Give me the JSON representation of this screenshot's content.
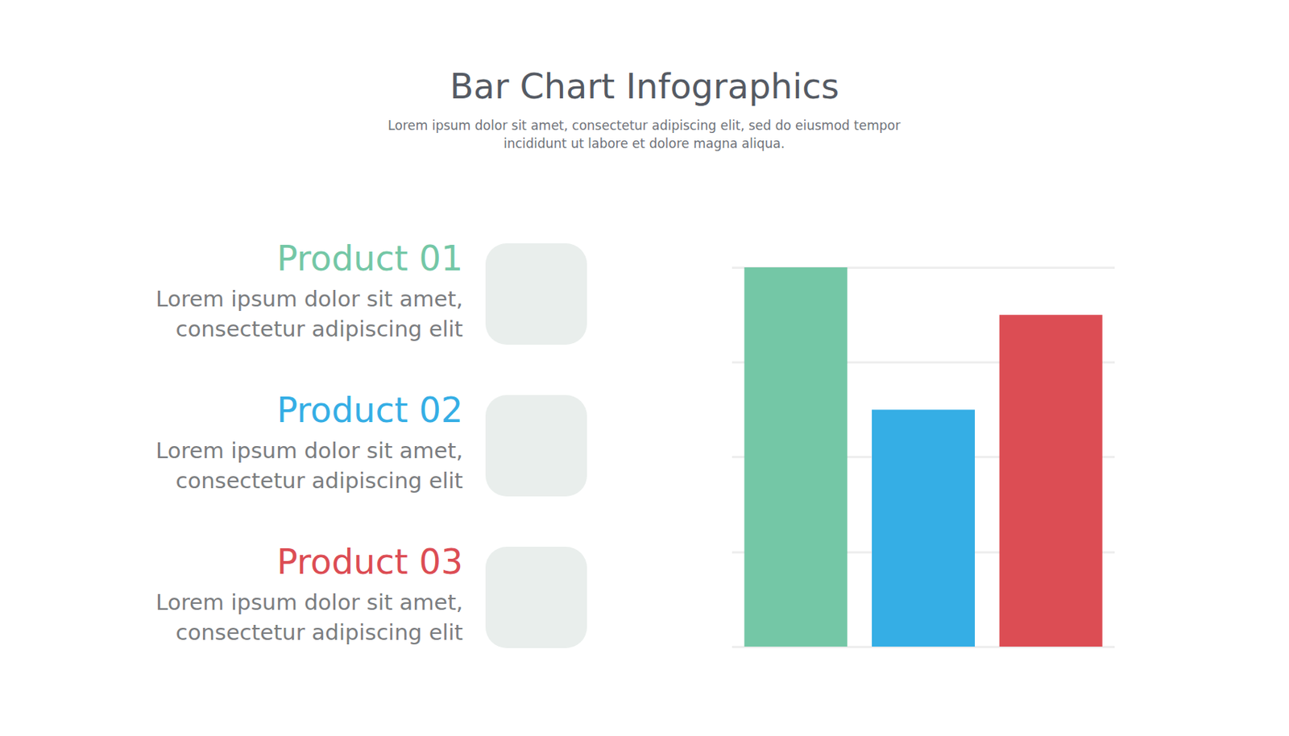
{
  "chart_data": {
    "type": "bar",
    "title": "Bar Chart Infographics",
    "subtitle": "Lorem ipsum dolor sit amet, consectetur adipiscing elit, sed do eiusmod tempor incididunt ut labore et dolore magna aliqua.",
    "categories": [
      "Product 01",
      "Product 02",
      "Product 03"
    ],
    "descriptions": [
      "Lorem ipsum dolor sit amet, consectetur adipiscing elit",
      "Lorem ipsum dolor sit amet, consectetur adipiscing elit",
      "Lorem ipsum dolor sit amet, consectetur adipiscing elit"
    ],
    "values": [
      4,
      2.5,
      3.5
    ],
    "colors": [
      "#74c7a6",
      "#35aee5",
      "#dc4d54"
    ],
    "ylim": [
      0,
      4
    ],
    "yticks": [
      0,
      1,
      2,
      3,
      4
    ],
    "grid": true,
    "tick_labels": false
  }
}
